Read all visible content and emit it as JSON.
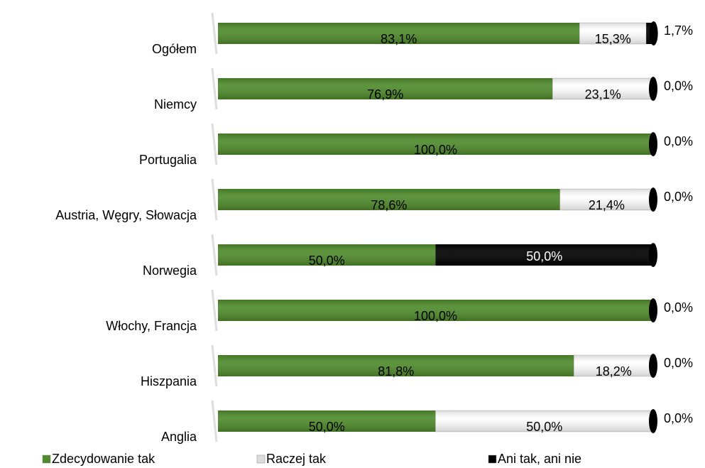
{
  "chart_data": {
    "type": "stacked-bar-horizontal",
    "categories": [
      "Ogółem",
      "Niemcy",
      "Portugalia",
      "Austria, Węgry, Słowacja",
      "Norwegia",
      "Włochy, Francja",
      "Hiszpania",
      "Anglia"
    ],
    "xlim": [
      0,
      100
    ],
    "legend": "bottom",
    "series": [
      {
        "name": "Zdecydowanie tak",
        "color": "#4f8a2c",
        "values": [
          83.1,
          76.9,
          100,
          78.6,
          50,
          100,
          81.8,
          50
        ],
        "value_labels": [
          "83,1%",
          "76,9%",
          "100,0%",
          "78,6%",
          "50,0%",
          "100,0%",
          "81,8%",
          "50,0%"
        ]
      },
      {
        "name": "Raczej tak",
        "color": "#ffffff",
        "values": [
          15.3,
          23.1,
          0,
          21.4,
          0,
          0,
          18.2,
          50
        ],
        "value_labels": [
          "15,3%",
          "23,1%",
          null,
          "21,4%",
          null,
          null,
          "18,2%",
          "50,0%"
        ]
      },
      {
        "name": "Ani tak, ani nie",
        "color": "#000000",
        "values": [
          1.7,
          0,
          0,
          0,
          50,
          0,
          0,
          0
        ],
        "value_labels": [
          "1,7%",
          "0,0%",
          "0,0%",
          "0,0%",
          "50,0%",
          "0,0%",
          "0,0%",
          "0,0%"
        ]
      }
    ]
  }
}
